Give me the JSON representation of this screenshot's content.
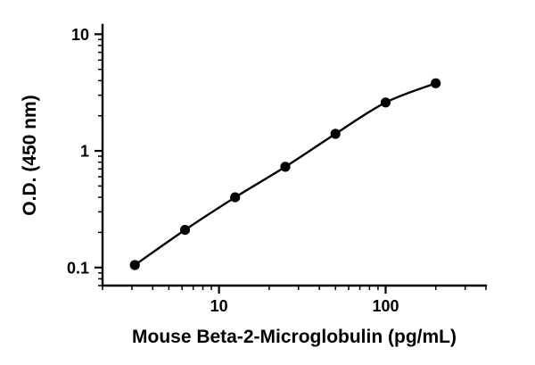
{
  "chart_data": {
    "type": "scatter",
    "subtype": "log-log standard curve with smooth fit line and filled circle markers",
    "title": "",
    "xlabel": "Mouse Beta-2-Microglobulin (pg/mL)",
    "ylabel": "O.D. (450 nm)",
    "x_scale": "log",
    "y_scale": "log",
    "x": [
      3.125,
      6.25,
      12.5,
      25,
      50,
      100,
      200
    ],
    "y": [
      0.105,
      0.21,
      0.4,
      0.73,
      1.4,
      2.6,
      3.8
    ],
    "xlim": [
      2,
      400
    ],
    "ylim": [
      0.07,
      12
    ],
    "x_ticks": [
      {
        "value": 10,
        "label": "10"
      },
      {
        "value": 100,
        "label": "100"
      }
    ],
    "y_ticks": [
      {
        "value": 0.1,
        "label": "0.1"
      },
      {
        "value": 1,
        "label": "1"
      },
      {
        "value": 10,
        "label": "10"
      }
    ],
    "grid": false,
    "legend": "none",
    "axis_color": "#000000",
    "line_color": "#000000",
    "marker_color": "#000000",
    "background": "#ffffff"
  }
}
